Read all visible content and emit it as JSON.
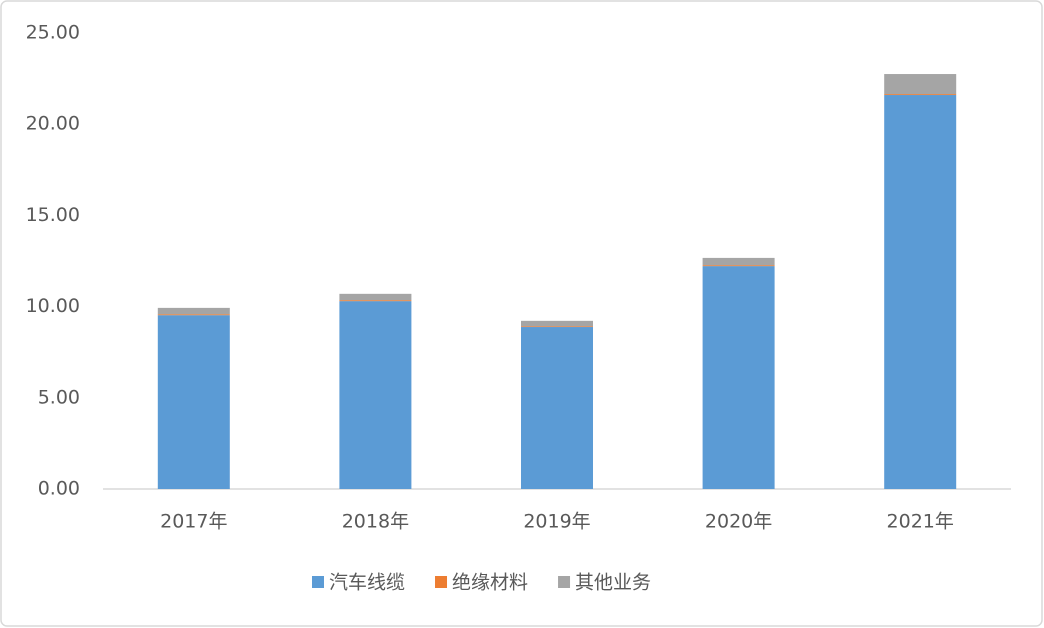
{
  "chart_data": {
    "type": "stacked_bar",
    "categories": [
      "2017年",
      "2018年",
      "2019年",
      "2020年",
      "2021年"
    ],
    "series": [
      {
        "name": "汽车线缆",
        "color": "#5b9bd5",
        "values": [
          9.53,
          10.3,
          8.88,
          12.22,
          21.6
        ]
      },
      {
        "name": "绝缘材料",
        "color": "#ed7d31",
        "values": [
          0.05,
          0.05,
          0.04,
          0.05,
          0.05
        ]
      },
      {
        "name": "其他业务",
        "color": "#a5a5a5",
        "values": [
          0.35,
          0.35,
          0.3,
          0.4,
          1.1
        ]
      }
    ],
    "ylim": [
      0,
      25
    ],
    "yticks": [
      {
        "value": 0,
        "label": "0.00"
      },
      {
        "value": 5,
        "label": "5.00"
      },
      {
        "value": 10,
        "label": "10.00"
      },
      {
        "value": 15,
        "label": "15.00"
      },
      {
        "value": 20,
        "label": "20.00"
      },
      {
        "value": 25,
        "label": "25.00"
      }
    ],
    "legend": "bottom"
  }
}
